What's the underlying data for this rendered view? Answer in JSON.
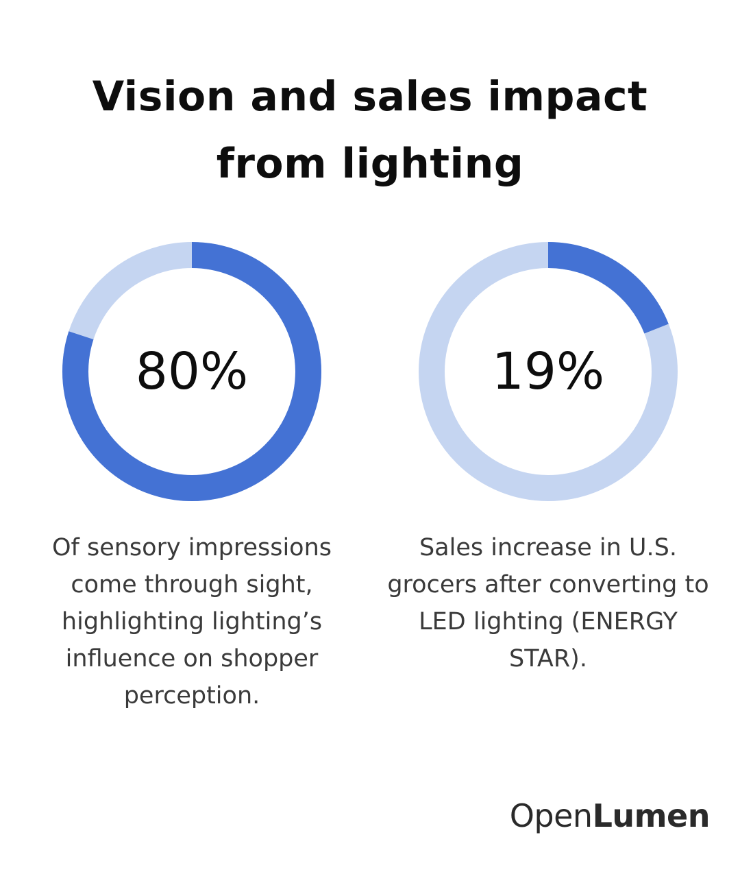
{
  "title_line1": "Vision and sales impact",
  "title_line2": "from lighting",
  "colors": {
    "fill": "#4472d4",
    "track": "#c5d5f1",
    "text": "#0d0d0d"
  },
  "chart_data": [
    {
      "type": "pie",
      "value": 80,
      "max": 100,
      "label": "80%",
      "caption_lines": [
        "Of sensory impressions",
        "come through sight,",
        "highlighting lighting’s",
        "influence on shopper",
        "perception."
      ]
    },
    {
      "type": "pie",
      "value": 19,
      "max": 100,
      "label": "19%",
      "caption_lines": [
        "Sales increase in U.S.",
        "grocers after converting to",
        "LED lighting (ENERGY",
        "STAR)."
      ]
    }
  ],
  "brand": {
    "part1": "Open",
    "part2": "Lumen"
  }
}
